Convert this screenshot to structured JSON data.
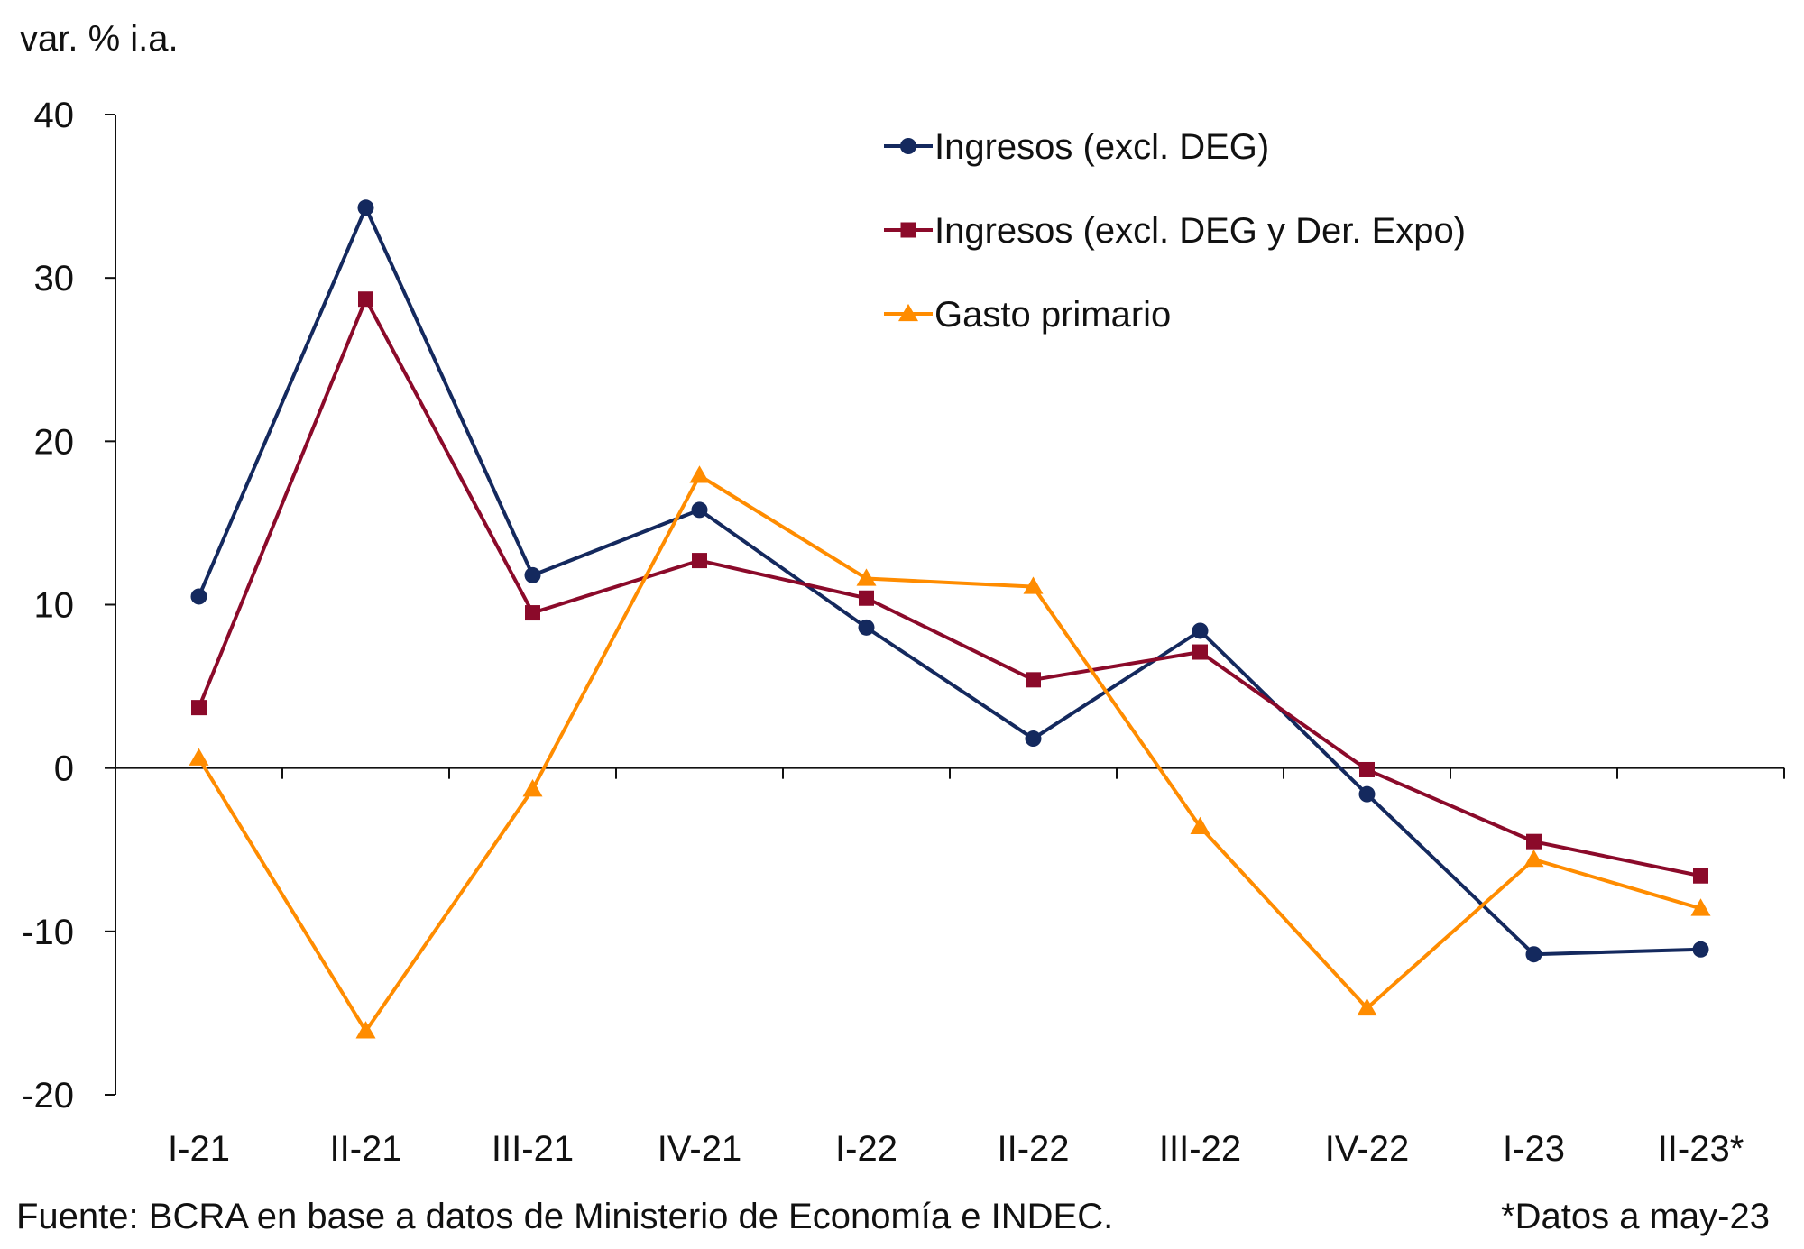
{
  "chart_data": {
    "type": "line",
    "title": "",
    "ylabel": "var. % i.a.",
    "xlabel": "",
    "categories": [
      "I-21",
      "II-21",
      "III-21",
      "IV-21",
      "I-22",
      "II-22",
      "III-22",
      "IV-22",
      "I-23",
      "II-23*"
    ],
    "ylim": [
      -20,
      40
    ],
    "yticks": [
      -20,
      -10,
      0,
      10,
      20,
      30,
      40
    ],
    "ytick_labels": [
      "-20",
      "-10",
      "0",
      "10",
      "20",
      "30",
      "40"
    ],
    "grid": false,
    "legend_position": "top-right",
    "series": [
      {
        "name": "Ingresos (excl. DEG)",
        "color": "#14295e",
        "marker": "circle",
        "values": [
          10.5,
          34.3,
          11.8,
          15.8,
          8.6,
          1.8,
          8.4,
          -1.6,
          -11.4,
          -11.1
        ]
      },
      {
        "name": "Ingresos (excl. DEG y Der. Expo)",
        "color": "#8b0a2a",
        "marker": "square",
        "values": [
          3.7,
          28.7,
          9.5,
          12.7,
          10.4,
          5.4,
          7.1,
          -0.1,
          -4.5,
          -6.6
        ]
      },
      {
        "name": "Gasto primario",
        "color": "#ff8c00",
        "marker": "triangle",
        "values": [
          0.6,
          -16.1,
          -1.3,
          17.9,
          11.6,
          11.1,
          -3.6,
          -14.7,
          -5.6,
          -8.6
        ]
      }
    ]
  },
  "footer": {
    "source": "Fuente: BCRA en base a datos de Ministerio de Economía e INDEC.",
    "note": "*Datos a may-23"
  }
}
